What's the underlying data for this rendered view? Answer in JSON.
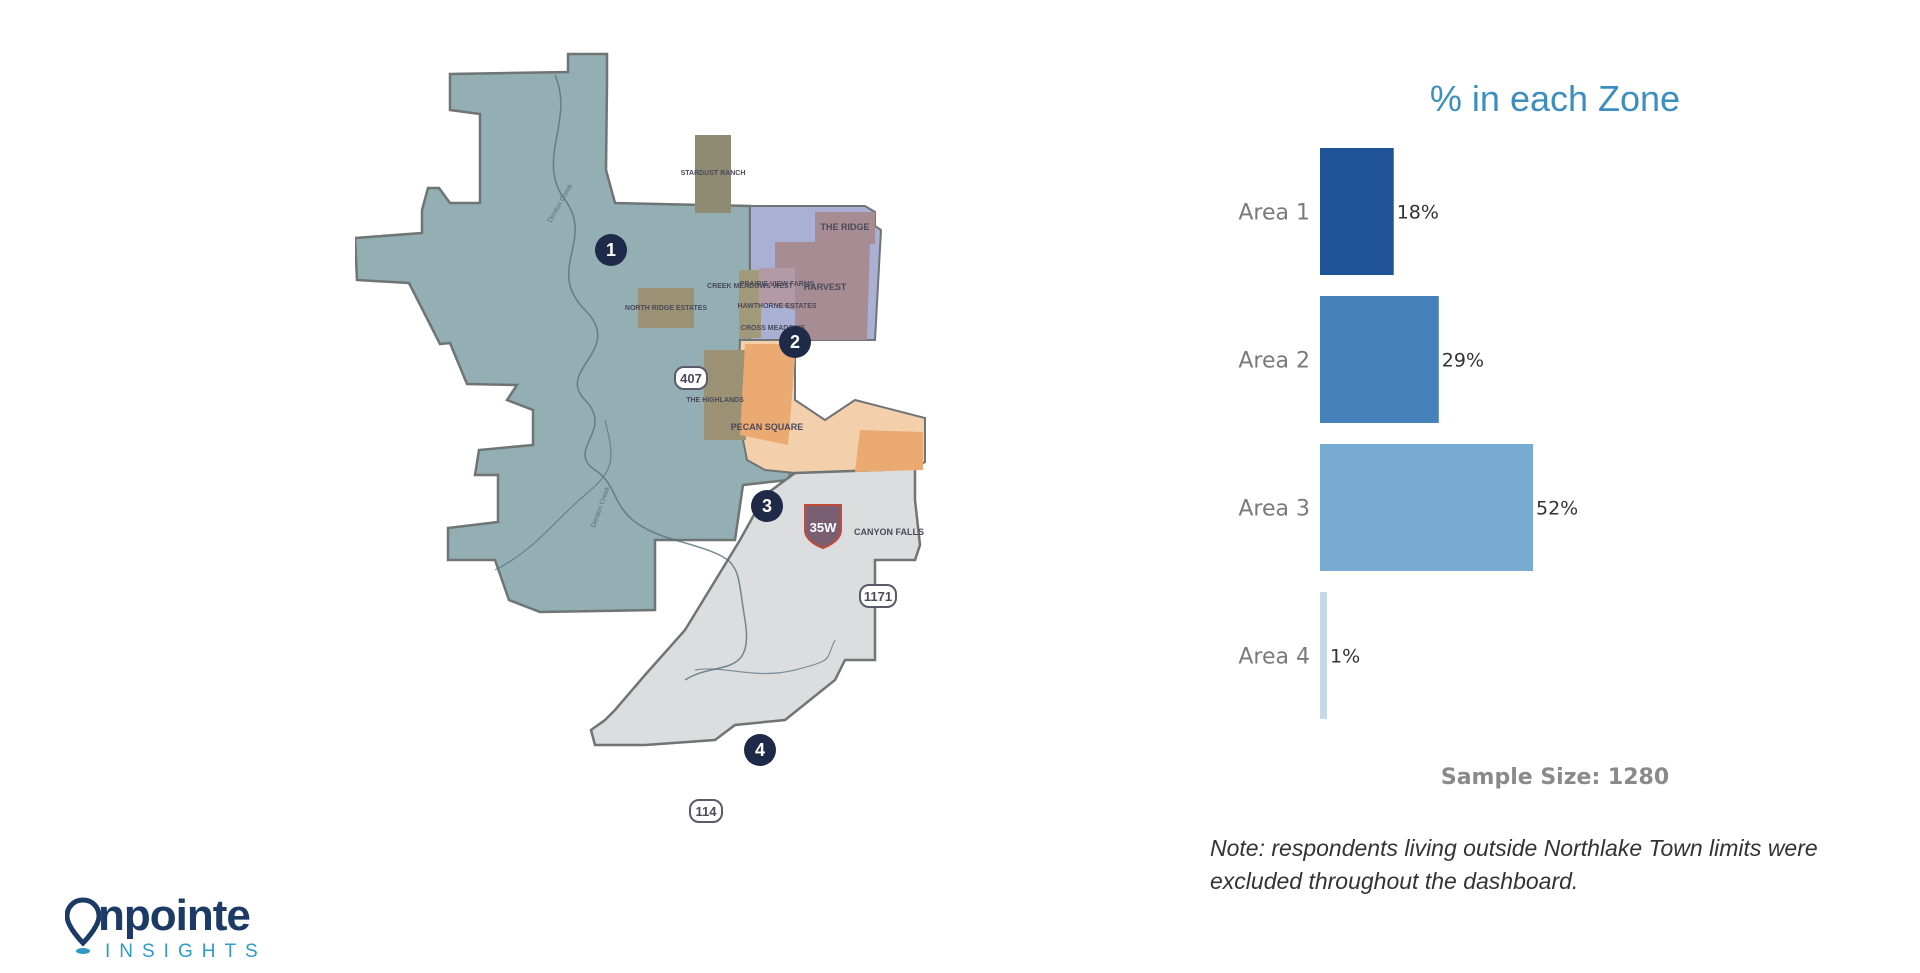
{
  "map": {
    "zones": [
      {
        "number": "1",
        "color": "#93afb3"
      },
      {
        "number": "2",
        "color": "#a9b0d4"
      },
      {
        "number": "3",
        "color": "#f3cfab"
      },
      {
        "number": "4",
        "color": "#dcdddf"
      }
    ],
    "neighborhoods": {
      "stardust_ranch": "STARDUST RANCH",
      "the_ridge": "THE RIDGE",
      "harvest": "HARVEST",
      "creek_meadows_west": "CREEK MEADOWS WEST",
      "prairie_view_farms": "PRAIRIE VIEW FARMS",
      "hawthorne_estates": "HAWTHORNE ESTATES",
      "cross_meadows": "CROSS MEADOWS",
      "north_ridge_estates": "NORTH RIDGE ESTATES",
      "the_highlands": "THE HIGHLANDS",
      "pecan_square": "PECAN SQUARE",
      "canyon_falls": "CANYON FALLS"
    },
    "roads": {
      "r407": "407",
      "i35w": "35W",
      "r1171": "1171",
      "r114": "114"
    },
    "creeks": {
      "creek_a": "Denton Creek",
      "creek_b": "Denton Creek"
    }
  },
  "chart_data": {
    "type": "bar",
    "orientation": "horizontal",
    "title": "% in each Zone",
    "categories": [
      "Area 1",
      "Area 2",
      "Area 3",
      "Area 4"
    ],
    "values": [
      18,
      29,
      52,
      1
    ],
    "value_labels": [
      "18%",
      "29%",
      "52%",
      "1%"
    ],
    "colors": [
      "#1f5297",
      "#4682b9",
      "#78abd2",
      "#c5d9ea"
    ],
    "xlim": [
      0,
      100
    ],
    "grid": false,
    "legend": "none"
  },
  "sample_size": "Sample Size: 1280",
  "note": "Note: respondents living outside Northlake Town limits were excluded throughout the dashboard.",
  "logo": {
    "word": "npointe",
    "sub": "INSIGHTS",
    "color": "#1b3a66",
    "accent": "#2f9ac9"
  }
}
